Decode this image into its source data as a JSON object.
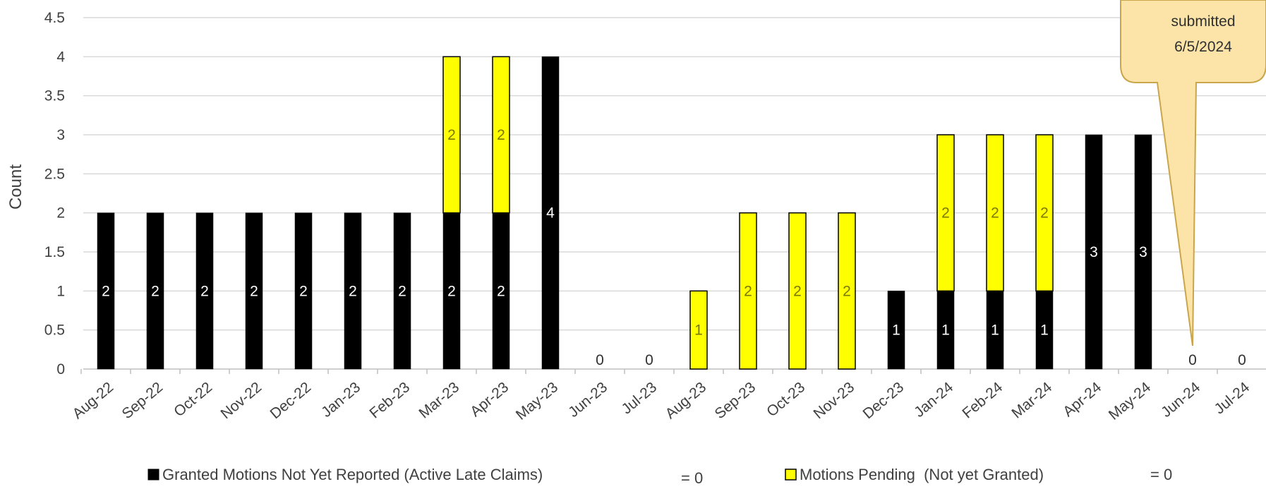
{
  "chart_data": {
    "type": "bar",
    "stacked": true,
    "categories": [
      "Aug-22",
      "Sep-22",
      "Oct-22",
      "Nov-22",
      "Dec-22",
      "Jan-23",
      "Feb-23",
      "Mar-23",
      "Apr-23",
      "May-23",
      "Jun-23",
      "Jul-23",
      "Aug-23",
      "Sep-23",
      "Oct-23",
      "Nov-23",
      "Dec-23",
      "Jan-24",
      "Feb-24",
      "Mar-24",
      "Apr-24",
      "May-24",
      "Jun-24",
      "Jul-24"
    ],
    "series": [
      {
        "name": "Granted Motions Not Yet Reported (Active Late Claims)",
        "color": "#000000",
        "values": [
          2,
          2,
          2,
          2,
          2,
          2,
          2,
          2,
          2,
          4,
          0,
          0,
          0,
          0,
          0,
          0,
          1,
          1,
          1,
          1,
          3,
          3,
          0,
          0
        ]
      },
      {
        "name": "Motions Pending  (Not yet Granted)",
        "color": "#ffff00",
        "values": [
          0,
          0,
          0,
          0,
          0,
          0,
          0,
          2,
          2,
          0,
          0,
          0,
          1,
          2,
          2,
          2,
          0,
          2,
          2,
          2,
          0,
          0,
          0,
          0
        ]
      }
    ],
    "zero_labels": [
      "0",
      "0",
      "0",
      "0"
    ],
    "zero_label_categories": [
      "Jun-23",
      "Jul-23",
      "Jun-24",
      "Jul-24"
    ],
    "ylabel": "Count",
    "xlabel": "",
    "ylim": [
      0,
      4.5
    ],
    "yticks": [
      "0",
      "0.5",
      "1",
      "1.5",
      "2",
      "2.5",
      "3",
      "3.5",
      "4",
      "4.5"
    ],
    "grid": true,
    "legend_position": "bottom",
    "legend_suffixes": [
      "= 0",
      "= 0"
    ],
    "annotation": {
      "lines": [
        "submitted",
        "6/5/2024"
      ],
      "points_to": "Jun-24",
      "fill": "#fce4a8",
      "stroke": "#c9a54c"
    }
  }
}
